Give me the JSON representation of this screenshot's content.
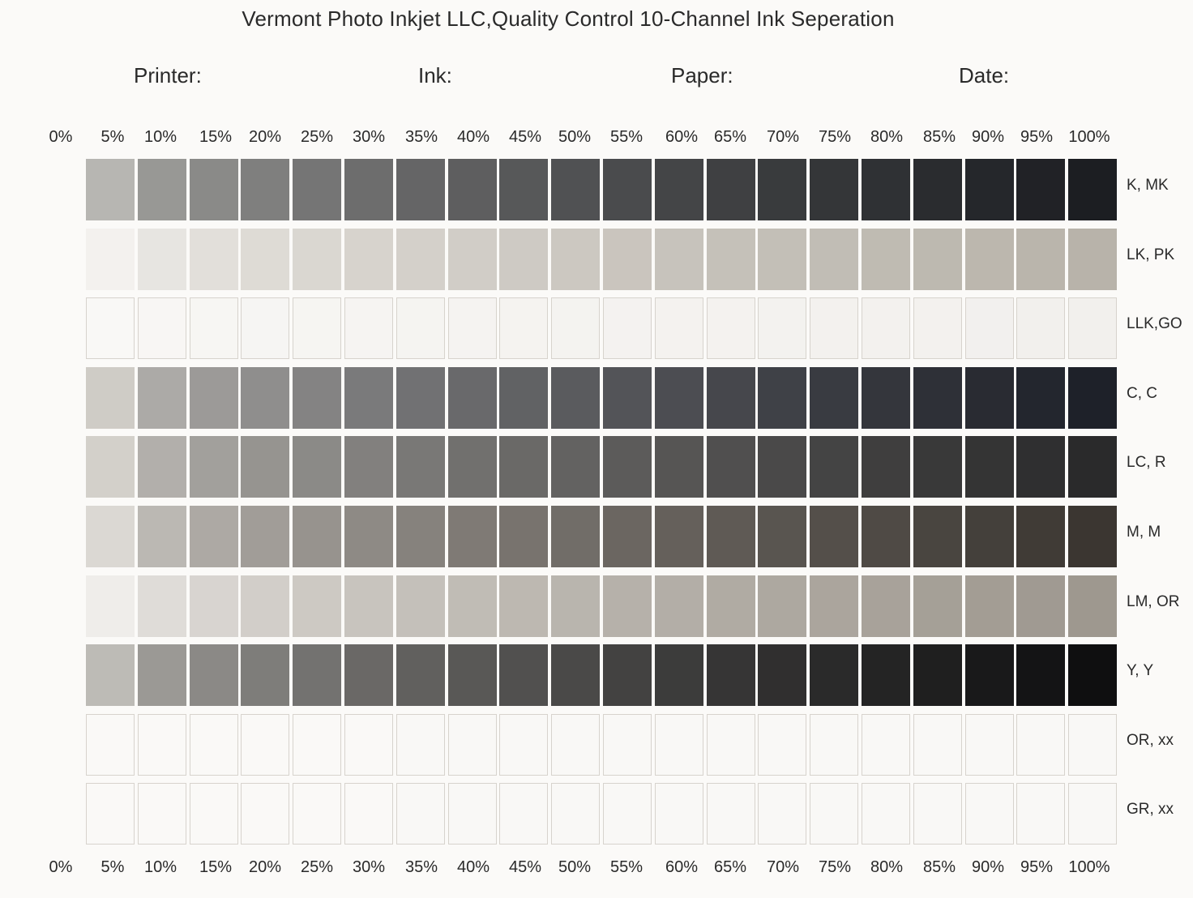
{
  "title": "Vermont Photo Inkjet LLC,Quality Control 10-Channel Ink Seperation",
  "meta_fields": [
    "Printer:",
    "Ink:",
    "Paper:",
    "Date:"
  ],
  "percent_labels": [
    "0%",
    "5%",
    "10%",
    "15%",
    "20%",
    "25%",
    "30%",
    "35%",
    "40%",
    "45%",
    "50%",
    "55%",
    "60%",
    "65%",
    "70%",
    "75%",
    "80%",
    "85%",
    "90%",
    "95%",
    "100%"
  ],
  "channels": [
    {
      "label": "K, MK",
      "light": "#b7b6b2",
      "dark": "#1c1e22"
    },
    {
      "label": "LK, PK",
      "light": "#f3f1ee",
      "dark": "#b8b3aa"
    },
    {
      "label": "LLK,GO",
      "light": "#f9f8f6",
      "dark": "#f2f0ed"
    },
    {
      "label": "C, C",
      "light": "#cfccc6",
      "dark": "#1e2129"
    },
    {
      "label": "LC, R",
      "light": "#d3d0ca",
      "dark": "#2a2a2b"
    },
    {
      "label": "M, M",
      "light": "#dbd8d3",
      "dark": "#3b3631"
    },
    {
      "label": "LM, OR",
      "light": "#efedea",
      "dark": "#9e988f"
    },
    {
      "label": "Y, Y",
      "light": "#bdbbb6",
      "dark": "#0f0f10"
    },
    {
      "label": "OR, xx",
      "light": "#faf9f7",
      "dark": "#f9f8f6"
    },
    {
      "label": "GR, xx",
      "light": "#faf9f7",
      "dark": "#f9f8f6"
    }
  ]
}
